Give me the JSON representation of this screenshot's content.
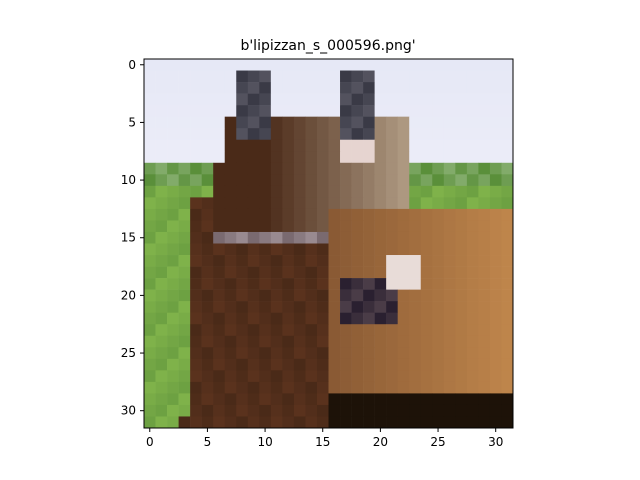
{
  "title": "b'lipizzan_s_000596.png'",
  "image": {
    "grid_size": [
      32,
      32
    ],
    "subject": "close-up of a brown horse head with a halter, green field and pale sky background"
  },
  "axes": {
    "x_ticks": [
      0,
      5,
      10,
      15,
      20,
      25,
      30
    ],
    "y_ticks": [
      0,
      5,
      10,
      15,
      20,
      25,
      30
    ],
    "xlim": [
      -0.5,
      31.5
    ],
    "ylim": [
      31.5,
      -0.5
    ]
  },
  "colors": {
    "sky": "#e6e8f6",
    "grass": "#7fb24a",
    "grass_dark": "#5a8f3a",
    "coat_dark": "#4a2a18",
    "coat_mid": "#8a5a34",
    "coat_light": "#c48a4e",
    "face_light": "#b8a48c",
    "ear": "#3a3a46"
  }
}
